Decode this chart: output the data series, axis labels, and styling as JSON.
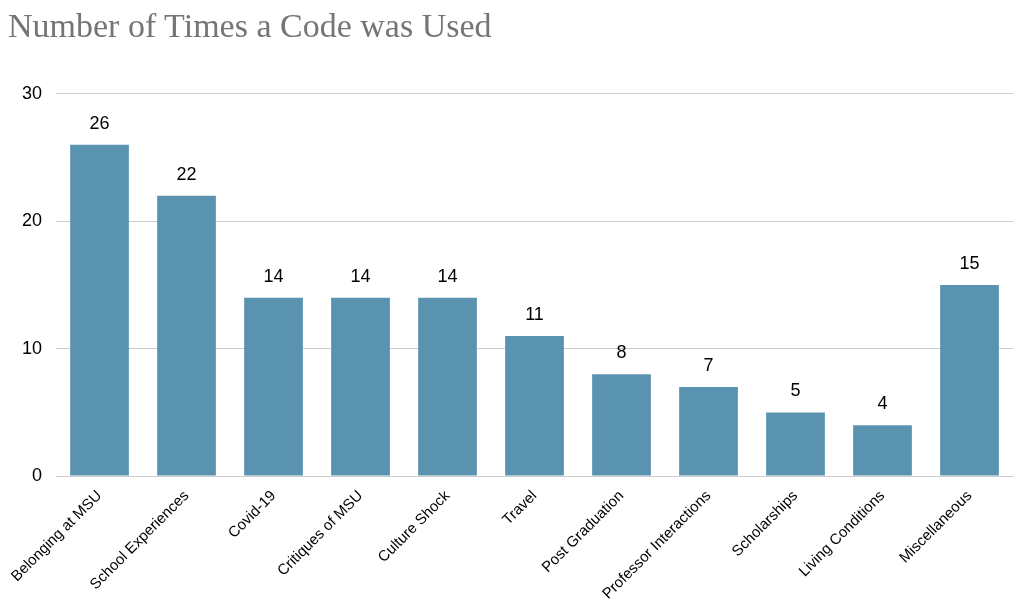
{
  "chart_data": {
    "type": "bar",
    "title": "Number of Times a Code was Used",
    "categories": [
      "Belonging at MSU",
      "School Experiences",
      "Covid-19",
      "Critiques of MSU",
      "Culture Shock",
      "Travel",
      "Post Graduation",
      "Professor Interactions",
      "Scholarships",
      "Living Conditions",
      "Miscellaneous"
    ],
    "values": [
      26,
      22,
      14,
      14,
      14,
      11,
      8,
      7,
      5,
      4,
      15
    ],
    "color": "#5a93b0",
    "ylim": [
      0,
      30
    ],
    "yticks": [
      0,
      10,
      20,
      30
    ],
    "grid": "y",
    "data_labels": true
  }
}
